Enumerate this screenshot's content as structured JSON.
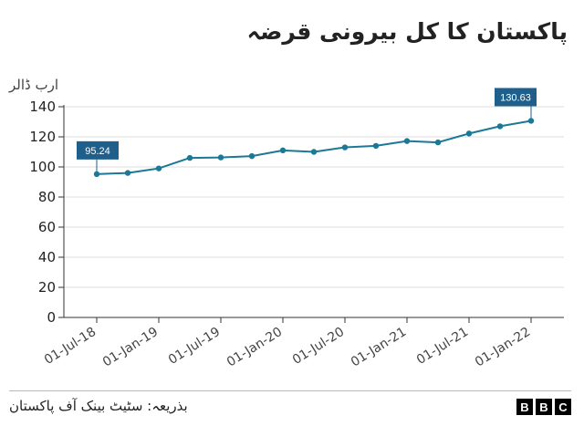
{
  "title": "پاکستان کا کل بیرونی قرضہ",
  "source": "بذریعہ: سٹیٹ بینک آف پاکستان",
  "brand": [
    "B",
    "B",
    "C"
  ],
  "colors": {
    "line": "#1b7996",
    "label_box": "#1f5f8b",
    "axis": "#333333",
    "grid": "#dddddd"
  },
  "chart_data": {
    "type": "line",
    "ylabel": "ارب ڈالر",
    "ylim": [
      0,
      140
    ],
    "yticks": [
      0,
      20,
      40,
      60,
      80,
      100,
      120,
      140
    ],
    "x": [
      "01-Jul-18",
      "01-Oct-18",
      "01-Jan-19",
      "01-Apr-19",
      "01-Jul-19",
      "01-Oct-19",
      "01-Jan-20",
      "01-Apr-20",
      "01-Jul-20",
      "01-Oct-20",
      "01-Jan-21",
      "01-Apr-21",
      "01-Jul-21",
      "01-Oct-21",
      "01-Jan-22"
    ],
    "xtick_labels": [
      "01-Jul-18",
      "01-Jan-19",
      "01-Jul-19",
      "01-Jan-20",
      "01-Jul-20",
      "01-Jan-21",
      "01-Jul-21",
      "01-Jan-22"
    ],
    "series": [
      {
        "values": [
          95.24,
          96,
          99,
          106,
          106.3,
          107.2,
          111,
          110,
          113,
          114,
          117.2,
          116.3,
          122.2,
          127,
          130.63
        ]
      }
    ],
    "annotations": [
      {
        "index": 0,
        "text": "95.24"
      },
      {
        "index": 14,
        "text": "130.63"
      }
    ],
    "grid": "horizontal"
  }
}
